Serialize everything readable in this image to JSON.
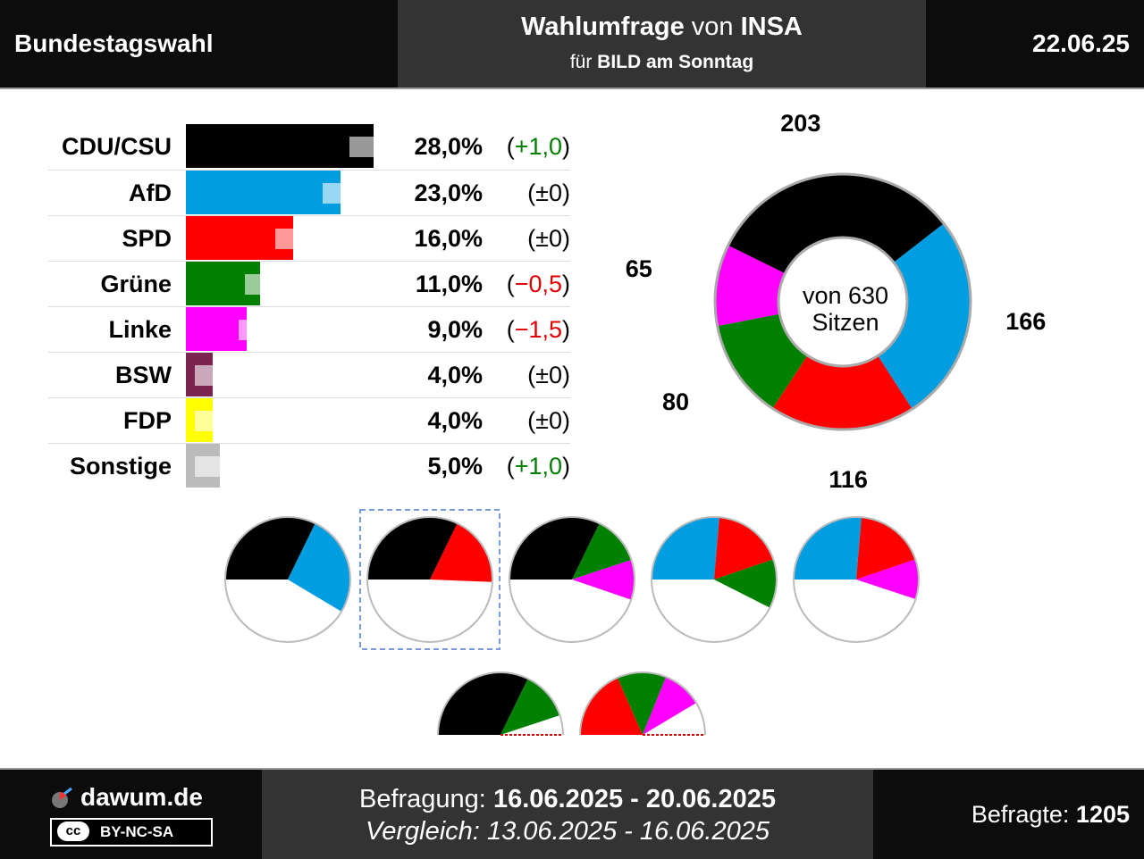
{
  "header": {
    "left_title": "Bundestagswahl",
    "title_bold_1": "Wahlumfrage",
    "title_mid": "von",
    "title_bold_2": "INSA",
    "subtitle_pre": "für",
    "subtitle_bold": "BILD am Sonntag",
    "date": "22.06.25"
  },
  "chart_data": [
    {
      "type": "bar",
      "orientation": "horizontal",
      "categories": [
        "CDU/CSU",
        "AfD",
        "SPD",
        "Grüne",
        "Linke",
        "BSW",
        "FDP",
        "Sonstige"
      ],
      "series": [
        {
          "values": [
            28.0,
            23.0,
            16.0,
            11.0,
            9.0,
            4.0,
            4.0,
            5.0
          ]
        },
        {
          "values": [
            27.0,
            23.0,
            16.0,
            11.5,
            10.5,
            4.0,
            4.0,
            4.0
          ]
        }
      ],
      "value_labels": [
        "28,0%",
        "23,0%",
        "16,0%",
        "11,0%",
        "9,0%",
        "4,0%",
        "4,0%",
        "5,0%"
      ],
      "change_labels": [
        "+1,0",
        "±0",
        "±0",
        "−0,5",
        "−1,5",
        "±0",
        "±0",
        "+1,0"
      ],
      "change_signs": [
        "pos",
        "zero",
        "zero",
        "neg",
        "neg",
        "zero",
        "zero",
        "pos"
      ],
      "colors": [
        "#000000",
        "#009ee0",
        "#ff0000",
        "#008000",
        "#ff00ff",
        "#7b2450",
        "#ffff00",
        "#bbbbbb"
      ]
    },
    {
      "type": "pie",
      "style": "donut",
      "categories": [
        "CDU/CSU",
        "AfD",
        "SPD",
        "Grüne",
        "Linke"
      ],
      "values": [
        203,
        166,
        116,
        80,
        65
      ],
      "colors": [
        "#000000",
        "#009ee0",
        "#ff0000",
        "#008000",
        "#ff00ff"
      ],
      "center_label_line1": "von 630",
      "center_label_line2": "Sitzen"
    }
  ],
  "coalitions": [
    {
      "parties": [
        "CDU/CSU",
        "AfD"
      ],
      "seats": [
        203,
        166
      ],
      "highlighted": false
    },
    {
      "parties": [
        "CDU/CSU",
        "SPD"
      ],
      "seats": [
        203,
        116
      ],
      "highlighted": true
    },
    {
      "parties": [
        "CDU/CSU",
        "Grüne",
        "Linke"
      ],
      "seats": [
        203,
        80,
        65
      ],
      "highlighted": false
    },
    {
      "parties": [
        "AfD",
        "SPD",
        "Grüne"
      ],
      "seats": [
        166,
        116,
        80
      ],
      "highlighted": false
    },
    {
      "parties": [
        "AfD",
        "SPD",
        "Linke"
      ],
      "seats": [
        166,
        116,
        65
      ],
      "highlighted": false
    },
    {
      "parties": [
        "CDU/CSU",
        "Grüne"
      ],
      "seats": [
        203,
        80
      ],
      "highlighted": false,
      "half": true
    },
    {
      "parties": [
        "SPD",
        "Grüne",
        "Linke"
      ],
      "seats": [
        116,
        80,
        65
      ],
      "highlighted": false,
      "half": true
    }
  ],
  "footer": {
    "brand": "dawum.de",
    "license": "BY-NC-SA",
    "license_badge": "cc",
    "survey_label": "Befragung:",
    "survey_period": "16.06.2025 - 20.06.2025",
    "compare_label": "Vergleich:",
    "compare_period": "13.06.2025 - 16.06.2025",
    "respondents_label": "Befragte:",
    "respondents": "1205"
  }
}
